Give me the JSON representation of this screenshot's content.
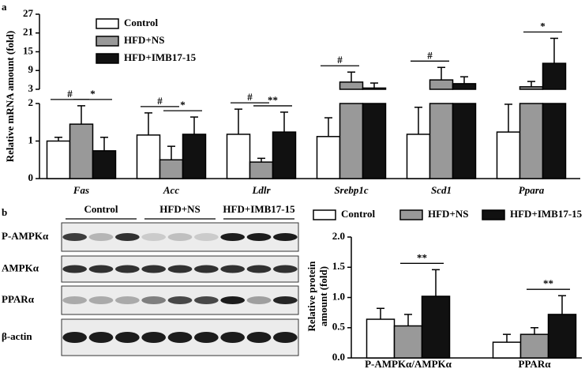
{
  "chart_data": [
    {
      "type": "bar",
      "panel_label": "a",
      "y_label": "Relative mRNA  amount (fold)",
      "categories": [
        "Fas",
        "Acc",
        "Ldlr",
        "Srebp1c",
        "Scd1",
        "Ppara"
      ],
      "series": [
        {
          "name": "Control",
          "color": "#ffffff",
          "values": [
            1.0,
            1.16,
            1.18,
            1.12,
            1.18,
            1.24
          ],
          "errors": [
            0.1,
            0.59,
            0.67,
            0.5,
            0.72,
            0.74
          ]
        },
        {
          "name": "HFD+NS",
          "color": "#999999",
          "values": [
            1.45,
            0.5,
            0.44,
            5.3,
            6,
            3.8
          ],
          "errors": [
            0.49,
            0.36,
            0.1,
            3.2,
            4,
            1.7
          ]
        },
        {
          "name": "HFD+IMB17-15",
          "color": "#111111",
          "values": [
            0.74,
            1.18,
            1.24,
            3.4,
            4.8,
            11.3
          ],
          "errors": [
            0.36,
            0.46,
            0.53,
            1.6,
            2.2,
            8
          ]
        }
      ],
      "y_segments": [
        {
          "ylim": [
            0,
            2
          ],
          "yticks": [
            0,
            1,
            2
          ]
        },
        {
          "ylim": [
            3,
            27
          ],
          "yticks": [
            3,
            9,
            15,
            21,
            27
          ]
        }
      ],
      "significance": [
        [
          "#",
          "*"
        ],
        [
          "#",
          "*"
        ],
        [
          "#",
          "**"
        ],
        [
          "#",
          null
        ],
        [
          "#",
          null
        ],
        [
          null,
          "*"
        ]
      ],
      "legend": "upper-left"
    },
    {
      "type": "bar",
      "y_label": [
        "Relative protein",
        "amount (fold)"
      ],
      "categories": [
        "P-AMPKα/AMPKα",
        "PPARα"
      ],
      "series": [
        {
          "name": "Control",
          "color": "#ffffff",
          "values": [
            0.64,
            0.26
          ],
          "errors": [
            0.18,
            0.13
          ]
        },
        {
          "name": "HFD+NS",
          "color": "#999999",
          "values": [
            0.53,
            0.39
          ],
          "errors": [
            0.19,
            0.11
          ]
        },
        {
          "name": "HFD+IMB17-15",
          "color": "#111111",
          "values": [
            1.02,
            0.72
          ],
          "errors": [
            0.44,
            0.31
          ]
        }
      ],
      "ylim": [
        0,
        2
      ],
      "yticks": [
        {
          "value": 0,
          "label": "0.0"
        },
        {
          "value": 0.5,
          "label": "0.5"
        },
        {
          "value": 1,
          "label": "1.0"
        },
        {
          "value": 1.5,
          "label": "1.5"
        },
        {
          "value": 2,
          "label": "2.0"
        }
      ],
      "significance": [
        [
          null,
          "**"
        ],
        [
          null,
          "**"
        ]
      ],
      "legend": "top"
    }
  ],
  "blot": {
    "panel_label": "b",
    "groups": [
      "Control",
      "HFD+NS",
      "HFD+IMB17-15"
    ],
    "rows": [
      "P-AMPKα",
      "AMPKα",
      "PPARα",
      "β-actin"
    ]
  }
}
